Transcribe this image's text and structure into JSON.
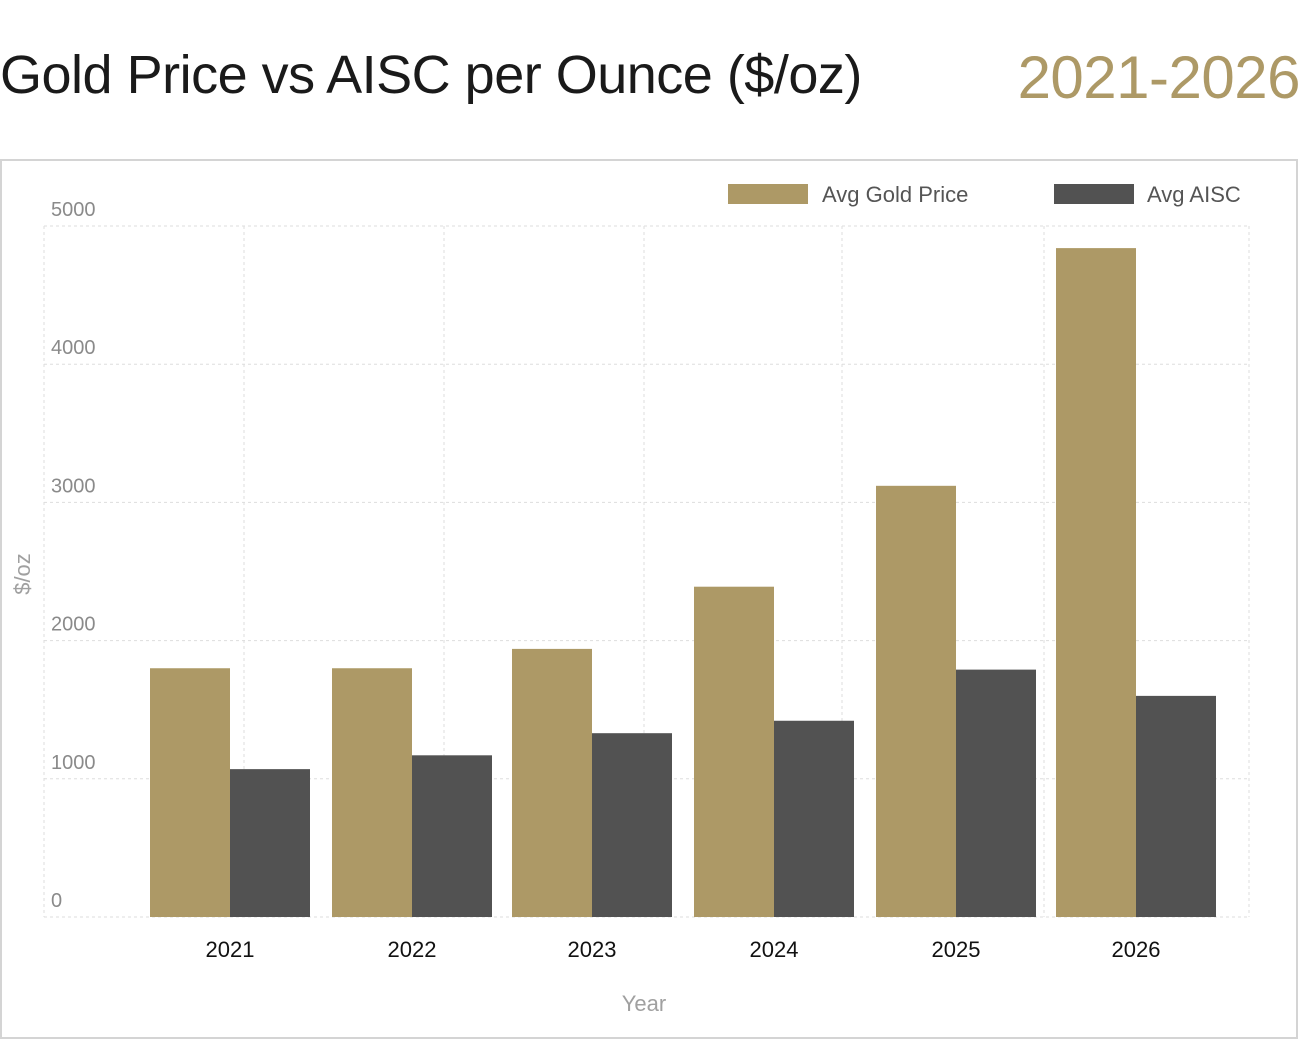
{
  "header": {
    "title": "Gold Price vs AISC per Ounce ($/oz)",
    "range": "2021-2026"
  },
  "colors": {
    "gold": "#ad9966",
    "aisc": "#525252",
    "grid": "#dddddd"
  },
  "chart_data": {
    "type": "bar",
    "title": "Gold Price vs AISC per Ounce ($/oz)",
    "xlabel": "Year",
    "ylabel": "$/oz",
    "ylim": [
      0,
      5000
    ],
    "yticks": [
      0,
      1000,
      2000,
      3000,
      4000,
      5000
    ],
    "categories": [
      "2021",
      "2022",
      "2023",
      "2024",
      "2025",
      "2026"
    ],
    "series": [
      {
        "name": "Avg Gold Price",
        "values": [
          1800,
          1800,
          1940,
          2390,
          3120,
          4840
        ]
      },
      {
        "name": "Avg AISC",
        "values": [
          1070,
          1170,
          1330,
          1420,
          1790,
          1600
        ]
      }
    ],
    "legend": "top-right",
    "grid": true
  }
}
